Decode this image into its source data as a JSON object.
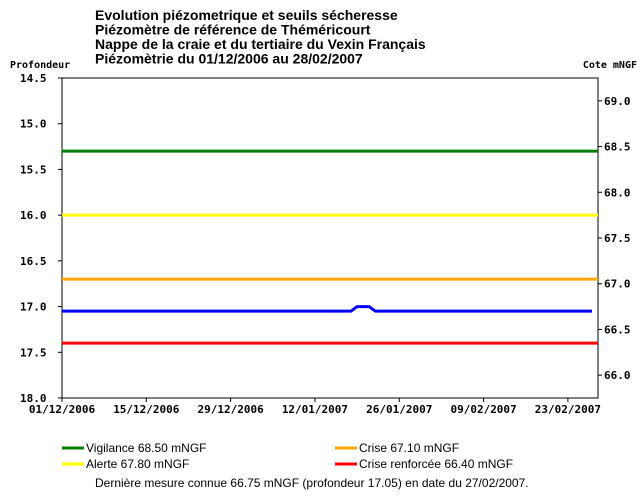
{
  "chart_data": {
    "type": "line",
    "title": [
      "Evolution piézometrique et seuils sécheresse",
      "Piézomètre de référence de Théméricourt",
      "Nappe de la craie et du tertiaire du Vexin Français",
      "Piézomètrie du 01/12/2006 au 28/02/2007"
    ],
    "ylabel_left": "Profondeur",
    "ylabel_right": "Cote mNGF",
    "ylim_left": [
      14.5,
      18.0
    ],
    "yticks_left": [
      "14.5",
      "15.0",
      "15.5",
      "16.0",
      "16.5",
      "17.0",
      "17.5",
      "18.0"
    ],
    "ylim_right": [
      69.25,
      65.75
    ],
    "yticks_right": [
      "69.0",
      "68.5",
      "68.0",
      "67.5",
      "67.0",
      "66.5",
      "66.0"
    ],
    "x_range": [
      "2006-12-01",
      "2007-02-28"
    ],
    "xticks": [
      "01/12/2006",
      "15/12/2006",
      "29/12/2006",
      "12/01/2007",
      "26/01/2007",
      "09/02/2007",
      "23/02/2007"
    ],
    "thresholds": [
      {
        "name": "Vigilance 68.50 mNGF",
        "value_mngf": 68.5,
        "depth": 15.3,
        "color": "#008000"
      },
      {
        "name": "Alerte 67.80 mNGF",
        "value_mngf": 67.8,
        "depth": 16.0,
        "color": "#ffff00"
      },
      {
        "name": "Crise 67.10 mNGF",
        "value_mngf": 67.1,
        "depth": 16.7,
        "color": "#ffa500"
      },
      {
        "name": "Crise renforcée 66.40 mNGF",
        "value_mngf": 66.4,
        "depth": 17.4,
        "color": "#ff0000"
      }
    ],
    "series": [
      {
        "color": "#0000ff",
        "points": [
          [
            "2006-12-01",
            17.05
          ],
          [
            "2007-01-12",
            17.05
          ],
          [
            "2007-01-18",
            17.05
          ],
          [
            "2007-01-19",
            17.0
          ],
          [
            "2007-01-21",
            17.0
          ],
          [
            "2007-01-22",
            17.05
          ],
          [
            "2007-02-27",
            17.05
          ]
        ]
      }
    ],
    "grid": false,
    "legend": "bottom"
  },
  "footer": {
    "last_measure": "Dernière mesure connue 66.75 mNGF (profondeur  17.05) en date du 27/02/2007."
  }
}
